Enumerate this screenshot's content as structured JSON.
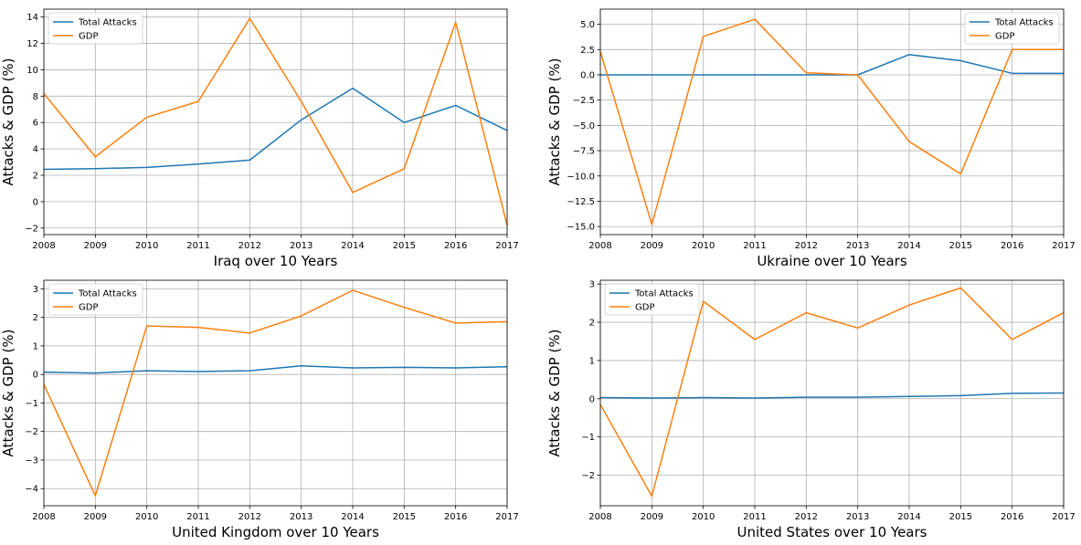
{
  "colors": {
    "total_attacks": "#1f77b4",
    "gdp": "#ff7f0e",
    "grid": "#b0b0b0"
  },
  "chart_data": [
    {
      "type": "line",
      "title": "",
      "xlabel": "Iraq over 10 Years",
      "ylabel": "Attacks & GDP (%)",
      "x": [
        2008,
        2009,
        2010,
        2011,
        2012,
        2013,
        2014,
        2015,
        2016,
        2017
      ],
      "xticks": [
        "2008",
        "2009",
        "2010",
        "2011",
        "2012",
        "2013",
        "2014",
        "2015",
        "2016",
        "2017"
      ],
      "xlim": [
        2008,
        2017
      ],
      "ylim": [
        -2.5,
        14.6
      ],
      "yticks": [
        -2,
        0,
        2,
        4,
        6,
        8,
        10,
        12,
        14
      ],
      "ytick_labels": [
        "−2",
        "0",
        "2",
        "4",
        "6",
        "8",
        "10",
        "12",
        "14"
      ],
      "grid": true,
      "legend_position": "top-left",
      "series": [
        {
          "name": "Total Attacks",
          "color": "#1f77b4",
          "values": [
            2.45,
            2.5,
            2.6,
            2.85,
            3.15,
            6.2,
            8.6,
            6.0,
            7.3,
            5.4
          ]
        },
        {
          "name": "GDP",
          "color": "#ff7f0e",
          "values": [
            8.2,
            3.4,
            6.4,
            7.6,
            13.9,
            7.6,
            0.7,
            2.5,
            13.6,
            -1.8
          ]
        }
      ]
    },
    {
      "type": "line",
      "title": "",
      "xlabel": "Ukraine over 10 Years",
      "ylabel": "Attacks & GDP (%)",
      "x": [
        2008,
        2009,
        2010,
        2011,
        2012,
        2013,
        2014,
        2015,
        2016,
        2017
      ],
      "xticks": [
        "2008",
        "2009",
        "2010",
        "2011",
        "2012",
        "2013",
        "2014",
        "2015",
        "2016",
        "2017"
      ],
      "xlim": [
        2008,
        2017
      ],
      "ylim": [
        -15.8,
        6.5
      ],
      "yticks": [
        -15,
        -12.5,
        -10,
        -7.5,
        -5,
        -2.5,
        0,
        2.5,
        5
      ],
      "ytick_labels": [
        "−15.0",
        "−12.5",
        "−10.0",
        "−7.5",
        "−5.0",
        "−2.5",
        "0.0",
        "2.5",
        "5.0"
      ],
      "grid": true,
      "legend_position": "top-right",
      "series": [
        {
          "name": "Total Attacks",
          "color": "#1f77b4",
          "values": [
            0.0,
            0.0,
            0.0,
            0.0,
            0.0,
            0.0,
            2.0,
            1.4,
            0.15,
            0.15
          ]
        },
        {
          "name": "GDP",
          "color": "#ff7f0e",
          "values": [
            2.3,
            -14.8,
            3.8,
            5.5,
            0.2,
            0.0,
            -6.6,
            -9.8,
            2.5,
            2.5
          ]
        }
      ]
    },
    {
      "type": "line",
      "title": "",
      "xlabel": "United Kingdom over 10 Years",
      "ylabel": "Attacks & GDP (%)",
      "x": [
        2008,
        2009,
        2010,
        2011,
        2012,
        2013,
        2014,
        2015,
        2016,
        2017
      ],
      "xticks": [
        "2008",
        "2009",
        "2010",
        "2011",
        "2012",
        "2013",
        "2014",
        "2015",
        "2016",
        "2017"
      ],
      "xlim": [
        2008,
        2017
      ],
      "ylim": [
        -4.6,
        3.3
      ],
      "yticks": [
        -4,
        -3,
        -2,
        -1,
        0,
        1,
        2,
        3
      ],
      "ytick_labels": [
        "−4",
        "−3",
        "−2",
        "−1",
        "0",
        "1",
        "2",
        "3"
      ],
      "grid": true,
      "legend_position": "top-left",
      "series": [
        {
          "name": "Total Attacks",
          "color": "#1f77b4",
          "values": [
            0.08,
            0.05,
            0.13,
            0.1,
            0.13,
            0.3,
            0.23,
            0.25,
            0.23,
            0.27
          ]
        },
        {
          "name": "GDP",
          "color": "#ff7f0e",
          "values": [
            -0.35,
            -4.25,
            1.7,
            1.65,
            1.45,
            2.05,
            2.95,
            2.35,
            1.8,
            1.85
          ]
        }
      ]
    },
    {
      "type": "line",
      "title": "",
      "xlabel": "United States over 10 Years",
      "ylabel": "Attacks & GDP (%)",
      "x": [
        2008,
        2009,
        2010,
        2011,
        2012,
        2013,
        2014,
        2015,
        2016,
        2017
      ],
      "xticks": [
        "2008",
        "2009",
        "2010",
        "2011",
        "2012",
        "2013",
        "2014",
        "2015",
        "2016",
        "2017"
      ],
      "xlim": [
        2008,
        2017
      ],
      "ylim": [
        -2.8,
        3.1
      ],
      "yticks": [
        -2,
        -1,
        0,
        1,
        2,
        3
      ],
      "ytick_labels": [
        "−2",
        "−1",
        "0",
        "1",
        "2",
        "3"
      ],
      "grid": true,
      "legend_position": "top-left",
      "series": [
        {
          "name": "Total Attacks",
          "color": "#1f77b4",
          "values": [
            0.03,
            0.02,
            0.03,
            0.02,
            0.04,
            0.04,
            0.06,
            0.08,
            0.14,
            0.15
          ]
        },
        {
          "name": "GDP",
          "color": "#ff7f0e",
          "values": [
            -0.15,
            -2.55,
            2.55,
            1.55,
            2.25,
            1.85,
            2.45,
            2.9,
            1.55,
            2.25
          ]
        }
      ]
    }
  ]
}
